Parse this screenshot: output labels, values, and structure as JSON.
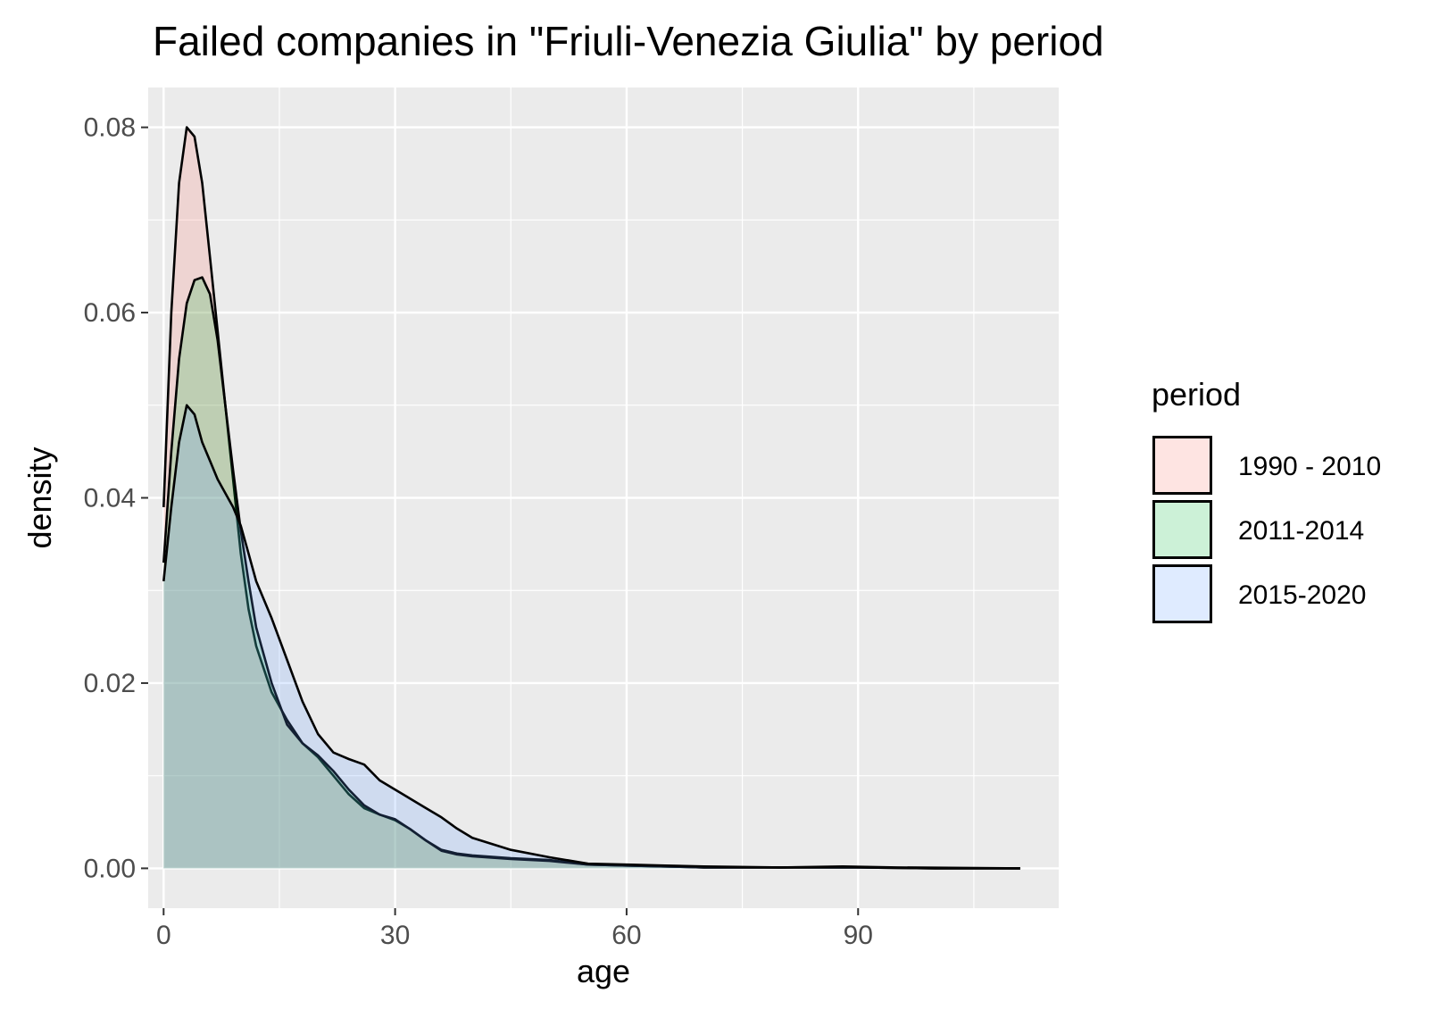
{
  "chart_data": {
    "type": "area",
    "title": "Failed companies in \"Friuli-Venezia Giulia\" by period",
    "xlabel": "age",
    "ylabel": "density",
    "xlim": [
      -2,
      116
    ],
    "ylim": [
      -0.0043,
      0.0843
    ],
    "x_ticks": [
      0,
      30,
      60,
      90
    ],
    "x_tick_labels": [
      "0",
      "30",
      "60",
      "90"
    ],
    "y_ticks": [
      0,
      0.02,
      0.04,
      0.06,
      0.08
    ],
    "y_tick_labels": [
      "0.00",
      "0.02",
      "0.04",
      "0.06",
      "0.08"
    ],
    "grid": true,
    "legend": {
      "title": "period",
      "position": "right"
    },
    "series": [
      {
        "name": "1990 - 2010",
        "fill": "#f8766d",
        "x": [
          0,
          1,
          2,
          3,
          4,
          5,
          6,
          7,
          8,
          9,
          10,
          11,
          12,
          14,
          16,
          18,
          20,
          22,
          24,
          26,
          28,
          30,
          32,
          34,
          36,
          38,
          40,
          45,
          50,
          55,
          60,
          65,
          70,
          80,
          90,
          100,
          111
        ],
        "values": [
          0.039,
          0.06,
          0.074,
          0.08,
          0.079,
          0.074,
          0.066,
          0.058,
          0.05,
          0.042,
          0.034,
          0.028,
          0.024,
          0.019,
          0.016,
          0.0135,
          0.012,
          0.01,
          0.008,
          0.0065,
          0.0058,
          0.0052,
          0.0042,
          0.003,
          0.002,
          0.0016,
          0.0014,
          0.0011,
          0.0009,
          0.0004,
          0.0003,
          0.0002,
          0.0001,
          0.0001,
          0.0001,
          0,
          0
        ]
      },
      {
        "name": "2011-2014",
        "fill": "#00ba38",
        "x": [
          0,
          1,
          2,
          3,
          4,
          5,
          6,
          7,
          8,
          9,
          10,
          11,
          12,
          14,
          16,
          18,
          20,
          22,
          24,
          26,
          28,
          30,
          32,
          34,
          36,
          38,
          40,
          45,
          50,
          55,
          60,
          65,
          70,
          80,
          90,
          100,
          111
        ],
        "values": [
          0.033,
          0.045,
          0.055,
          0.061,
          0.0635,
          0.0638,
          0.062,
          0.057,
          0.05,
          0.043,
          0.0365,
          0.031,
          0.026,
          0.02,
          0.0155,
          0.0135,
          0.0122,
          0.0105,
          0.0085,
          0.0068,
          0.0058,
          0.0053,
          0.0042,
          0.003,
          0.0019,
          0.0015,
          0.0013,
          0.001,
          0.0008,
          0.0004,
          0.0003,
          0.0002,
          0.0001,
          0.0001,
          0.0001,
          0,
          0
        ]
      },
      {
        "name": "2015-2020",
        "fill": "#619cff",
        "x": [
          0,
          1,
          2,
          3,
          4,
          5,
          6,
          7,
          8,
          9,
          10,
          11,
          12,
          14,
          16,
          18,
          20,
          22,
          24,
          26,
          28,
          30,
          32,
          34,
          36,
          38,
          40,
          45,
          50,
          55,
          60,
          65,
          70,
          80,
          88,
          95,
          111
        ],
        "values": [
          0.031,
          0.039,
          0.046,
          0.05,
          0.049,
          0.046,
          0.044,
          0.042,
          0.0405,
          0.039,
          0.037,
          0.034,
          0.031,
          0.027,
          0.0225,
          0.018,
          0.0145,
          0.0125,
          0.0118,
          0.0112,
          0.0095,
          0.0085,
          0.0075,
          0.0065,
          0.0055,
          0.0043,
          0.0033,
          0.002,
          0.0012,
          0.0005,
          0.0004,
          0.0003,
          0.0002,
          0.0001,
          0.0002,
          0.0001,
          0
        ]
      }
    ]
  }
}
